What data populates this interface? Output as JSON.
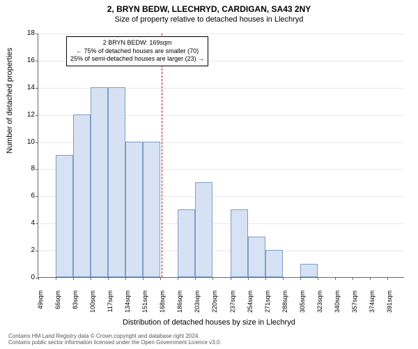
{
  "title": "2, BRYN BEDW, LLECHRYD, CARDIGAN, SA43 2NY",
  "subtitle": "Size of property relative to detached houses in Llechryd",
  "chart": {
    "type": "histogram",
    "ylabel": "Number of detached properties",
    "xlabel": "Distribution of detached houses by size in Llechryd",
    "ylim": [
      0,
      18
    ],
    "ytick_step": 2,
    "bar_color": "#d6e2f3",
    "bar_border": "#7d9cc8",
    "grid_color": "#e8e8e8",
    "background_color": "#ffffff",
    "reference_line_color": "#cc0000",
    "reference_value": 169,
    "x_categories": [
      "49sqm",
      "66sqm",
      "83sqm",
      "100sqm",
      "117sqm",
      "134sqm",
      "151sqm",
      "168sqm",
      "186sqm",
      "203sqm",
      "220sqm",
      "237sqm",
      "254sqm",
      "271sqm",
      "288sqm",
      "305sqm",
      "323sqm",
      "340sqm",
      "357sqm",
      "374sqm",
      "391sqm"
    ],
    "values": [
      0,
      9,
      12,
      14,
      14,
      10,
      10,
      0,
      5,
      7,
      0,
      5,
      3,
      2,
      0,
      1,
      0,
      0,
      0,
      0,
      0
    ],
    "label_fontsize": 11,
    "tick_fontsize": 10
  },
  "annotation": {
    "line1": "2 BRYN BEDW: 169sqm",
    "line2": "← 75% of detached houses are smaller (70)",
    "line3": "25% of semi-detached houses are larger (23) →"
  },
  "footer": {
    "line1": "Contains HM Land Registry data © Crown copyright and database right 2024.",
    "line2": "Contains public sector information licensed under the Open Government Licence v3.0."
  }
}
